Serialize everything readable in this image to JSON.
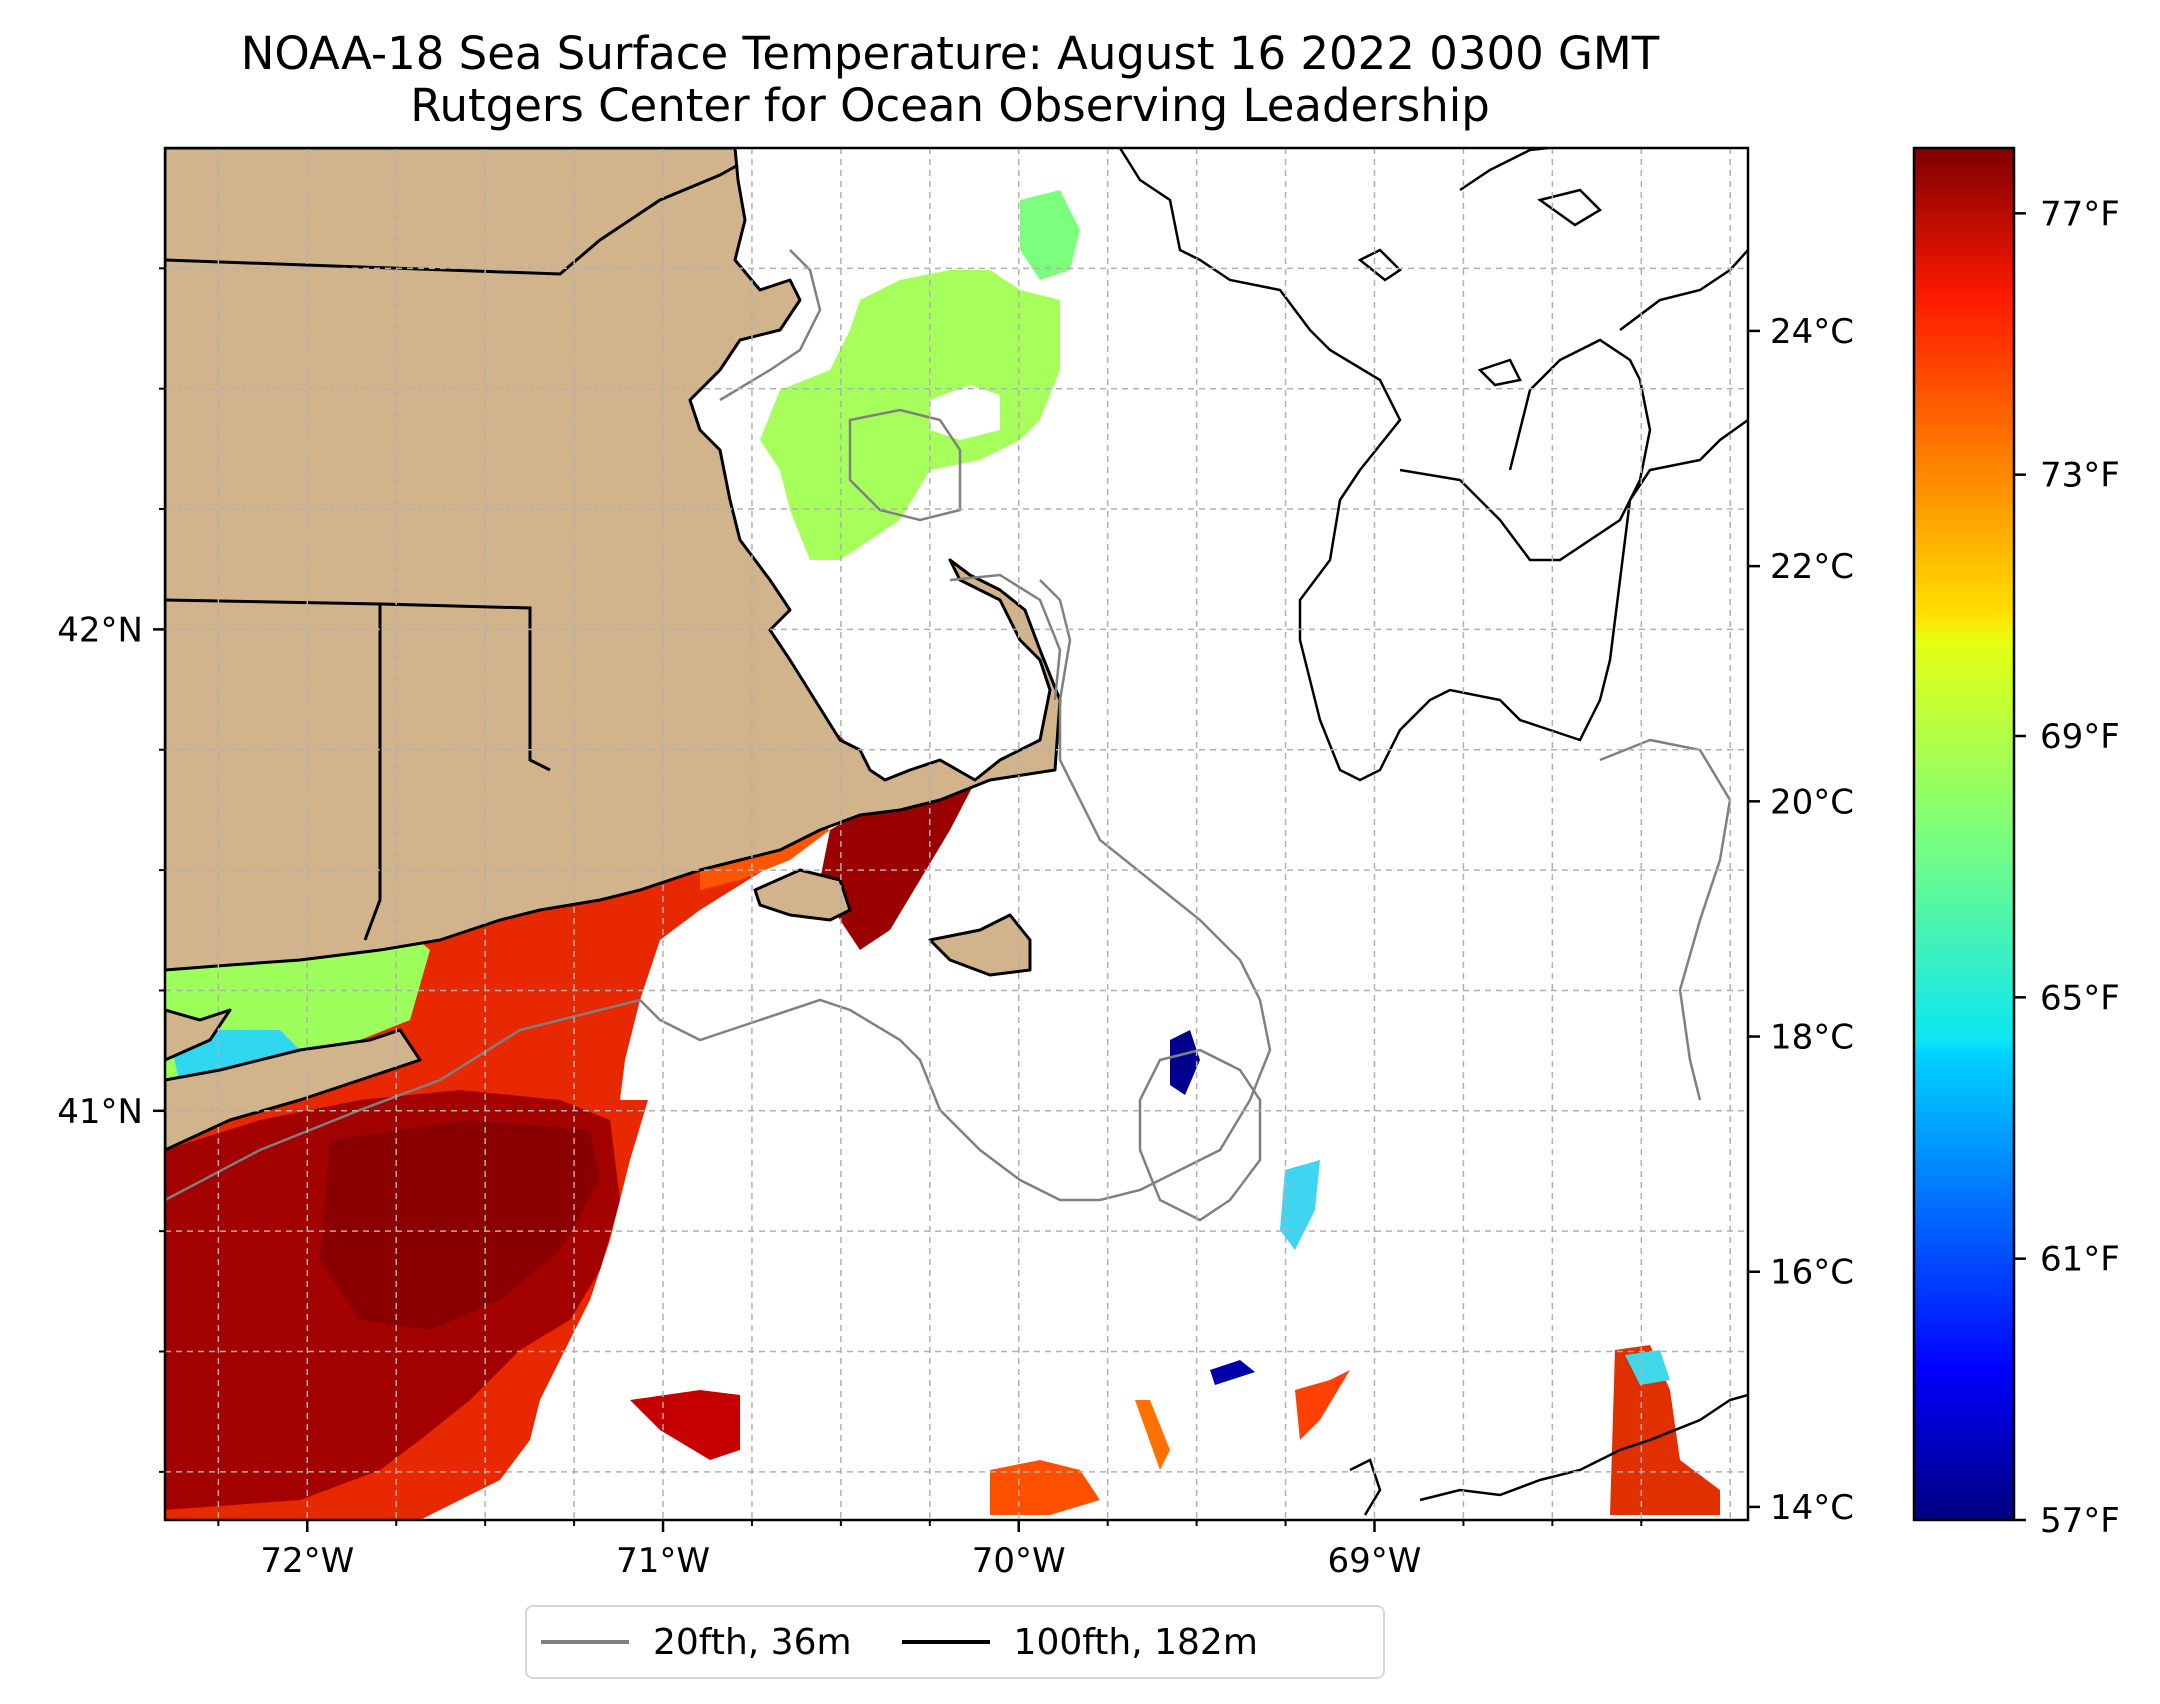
{
  "title": {
    "line1": "NOAA-18 Sea Surface Temperature: August 16 2022 0300 GMT",
    "line2": "Rutgers Center for Ocean Observing Leadership"
  },
  "map": {
    "lon_range": [
      -72.4,
      -67.95
    ],
    "lat_range": [
      40.15,
      43.0
    ],
    "x_ticks": [
      {
        "lon": -72,
        "label": "72°W"
      },
      {
        "lon": -71,
        "label": "71°W"
      },
      {
        "lon": -70,
        "label": "70°W"
      },
      {
        "lon": -69,
        "label": "69°W"
      }
    ],
    "y_ticks": [
      {
        "lat": 42,
        "label": "42°N"
      },
      {
        "lat": 41,
        "label": "41°N"
      }
    ],
    "grid": true,
    "colors": {
      "land": "#d2b48c",
      "coast": "#000000",
      "isobath_20": "#808080",
      "isobath_100": "#000000"
    }
  },
  "colorbar": {
    "colormap": "jet",
    "min_f": 57,
    "max_f": 78,
    "fahrenheit_ticks": [
      {
        "value": 77,
        "label": "77°F"
      },
      {
        "value": 73,
        "label": "73°F"
      },
      {
        "value": 69,
        "label": "69°F"
      },
      {
        "value": 65,
        "label": "65°F"
      },
      {
        "value": 61,
        "label": "61°F"
      },
      {
        "value": 57,
        "label": "57°F"
      }
    ],
    "celsius_ticks": [
      {
        "value": 24,
        "label": "24°C"
      },
      {
        "value": 22,
        "label": "22°C"
      },
      {
        "value": 20,
        "label": "20°C"
      },
      {
        "value": 18,
        "label": "18°C"
      },
      {
        "value": 16,
        "label": "16°C"
      },
      {
        "value": 14,
        "label": "14°C"
      }
    ]
  },
  "legend": {
    "items": [
      {
        "label": "20fth, 36m",
        "color": "#808080"
      },
      {
        "label": "100fth, 182m",
        "color": "#000000"
      }
    ]
  }
}
